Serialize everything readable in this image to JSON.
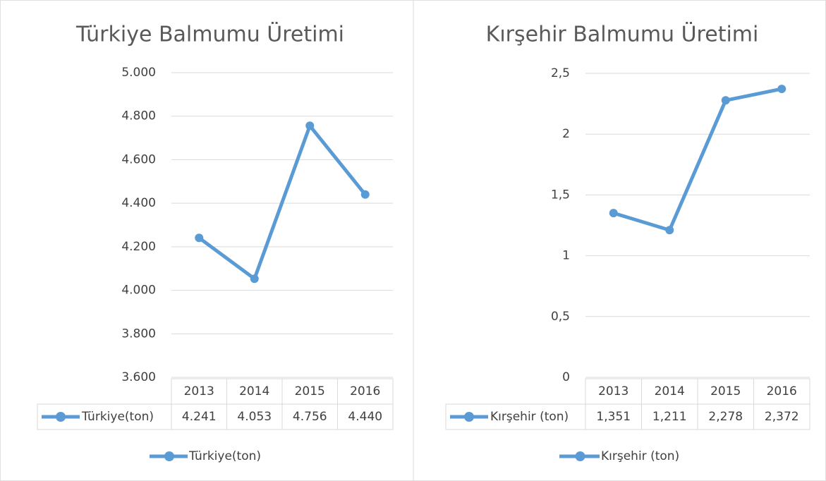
{
  "chart_data": [
    {
      "type": "line",
      "title": "Türkiye Balmumu Üretimi",
      "categories": [
        "2013",
        "2014",
        "2015",
        "2016"
      ],
      "series": [
        {
          "name": "Türkiye(ton)",
          "color": "#5b9bd5",
          "values": [
            4241,
            4053,
            4756,
            4440
          ],
          "value_labels": [
            "4.241",
            "4.053",
            "4.756",
            "4.440"
          ]
        }
      ],
      "ylim": [
        3600,
        5000
      ],
      "yticks": [
        {
          "value": 3600,
          "label": "3.600"
        },
        {
          "value": 3800,
          "label": "3.800"
        },
        {
          "value": 4000,
          "label": "4.000"
        },
        {
          "value": 4200,
          "label": "4.200"
        },
        {
          "value": 4400,
          "label": "4.400"
        },
        {
          "value": 4600,
          "label": "4.600"
        },
        {
          "value": 4800,
          "label": "4.800"
        },
        {
          "value": 5000,
          "label": "5.000"
        }
      ],
      "grid": true,
      "legend": "bottom",
      "data_table": true
    },
    {
      "type": "line",
      "title": "Kırşehir Balmumu Üretimi",
      "categories": [
        "2013",
        "2014",
        "2015",
        "2016"
      ],
      "series": [
        {
          "name": "Kırşehir (ton)",
          "color": "#5b9bd5",
          "values": [
            1.351,
            1.211,
            2.278,
            2.372
          ],
          "value_labels": [
            "1,351",
            "1,211",
            "2,278",
            "2,372"
          ]
        }
      ],
      "ylim": [
        0,
        2.5
      ],
      "yticks": [
        0,
        {
          "value": 0.5,
          "label": "0,5"
        },
        1,
        {
          "value": 1.5,
          "label": "1,5"
        },
        2,
        {
          "value": 2.5,
          "label": "2,5"
        }
      ],
      "grid": true,
      "legend": "bottom",
      "data_table": true
    }
  ]
}
